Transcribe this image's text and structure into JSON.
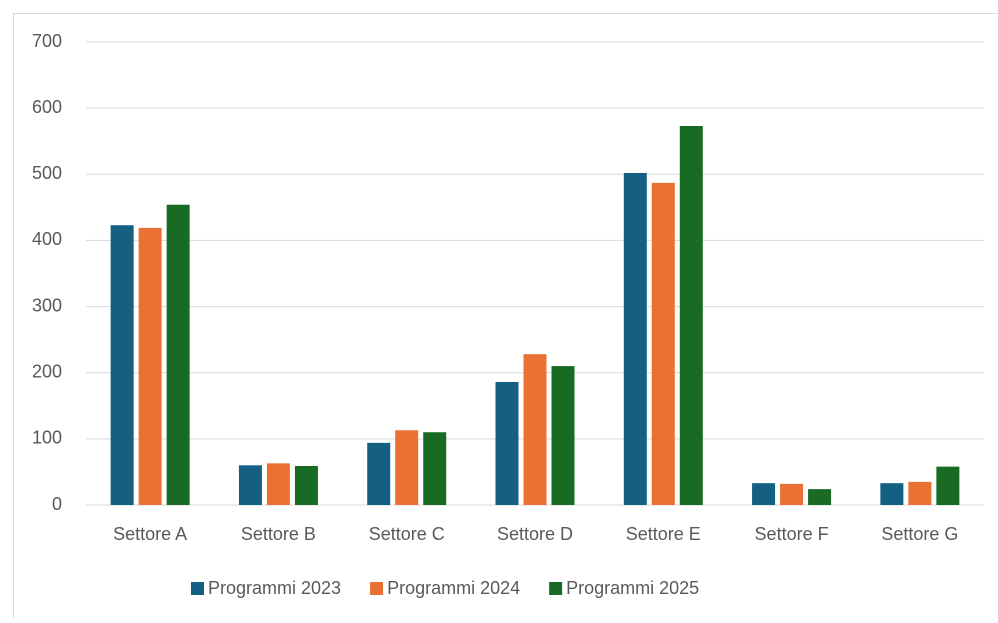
{
  "chart_data": {
    "type": "bar",
    "categories": [
      "Settore A",
      "Settore B",
      "Settore C",
      "Settore D",
      "Settore E",
      "Settore F",
      "Settore G"
    ],
    "series": [
      {
        "name": "Programmi 2023",
        "color": "#156082",
        "values": [
          423,
          60,
          94,
          186,
          502,
          33,
          33
        ]
      },
      {
        "name": "Programmi 2024",
        "color": "#e97132",
        "values": [
          419,
          63,
          113,
          228,
          487,
          32,
          35
        ]
      },
      {
        "name": "Programmi 2025",
        "color": "#196b24",
        "values": [
          454,
          59,
          110,
          210,
          573,
          24,
          58
        ]
      }
    ],
    "ylim": [
      0,
      700
    ],
    "yticks": [
      0,
      100,
      200,
      300,
      400,
      500,
      600,
      700
    ],
    "grid": true,
    "legend": "bottom"
  }
}
